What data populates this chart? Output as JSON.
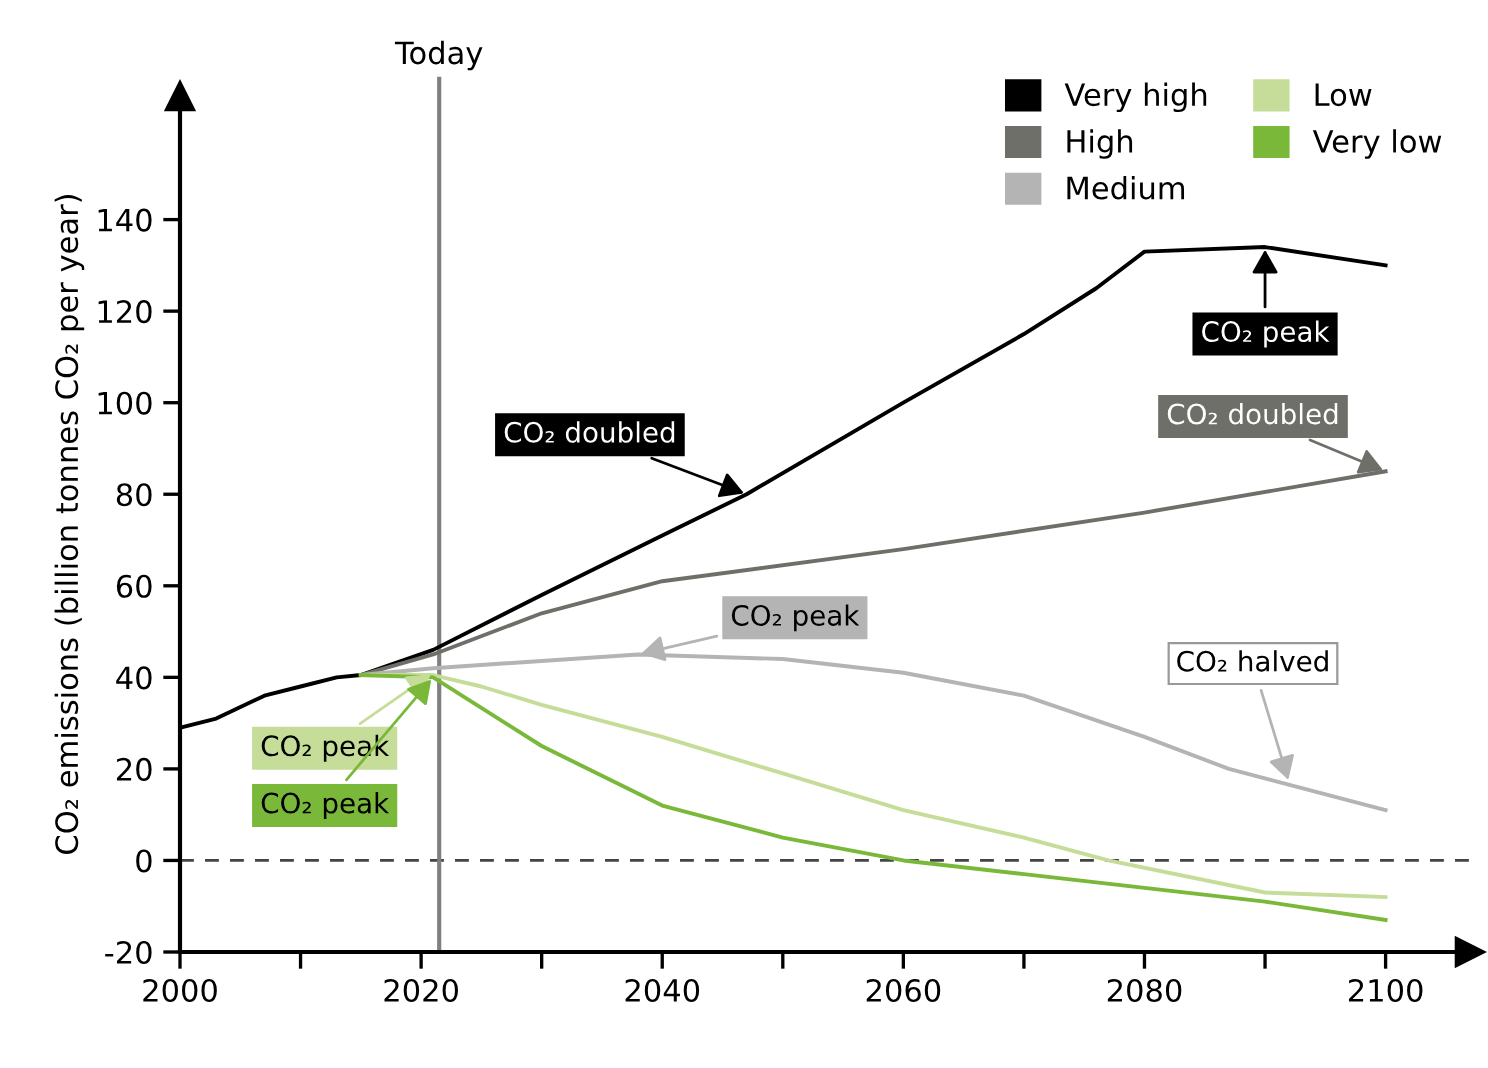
{
  "chart_data": {
    "type": "line",
    "ylabel": "CO₂ emissions (billion tonnes CO₂ per year)",
    "xlim": [
      2000,
      2107
    ],
    "ylim": [
      -20,
      167
    ],
    "xticks": [
      2000,
      {
        "value": 2010,
        "label": null
      },
      2020,
      {
        "value": 2030,
        "label": null
      },
      2040,
      {
        "value": 2050,
        "label": null
      },
      2060,
      {
        "value": 2070,
        "label": null
      },
      2080,
      {
        "value": 2090,
        "label": null
      },
      2100
    ],
    "yticks": [
      -20,
      0,
      20,
      40,
      60,
      80,
      100,
      120,
      140
    ],
    "legend": "top right",
    "grid": false,
    "line_style": "solid",
    "marker": "none",
    "series": [
      {
        "name": "Very high",
        "color": "#000000",
        "x": [
          2000,
          2003,
          2007,
          2010,
          2013,
          2015,
          2021,
          2030,
          2040,
          2047,
          2060,
          2070,
          2076,
          2080,
          2090,
          2100
        ],
        "values": [
          29,
          31,
          36,
          38,
          40,
          40.5,
          46,
          58,
          71,
          80,
          100,
          115,
          125,
          133,
          134,
          130
        ]
      },
      {
        "name": "High",
        "color": "#6f6f6a",
        "x": [
          2015,
          2021,
          2030,
          2040,
          2060,
          2080,
          2100
        ],
        "values": [
          40.5,
          45,
          54,
          61,
          68,
          76,
          85
        ]
      },
      {
        "name": "Medium",
        "color": "#b4b4b4",
        "x": [
          2015,
          2021,
          2038,
          2050,
          2060,
          2070,
          2080,
          2087,
          2100
        ],
        "values": [
          40.5,
          42,
          45,
          44,
          41,
          36,
          27,
          20,
          11
        ]
      },
      {
        "name": "Low",
        "color": "#c5dd98",
        "x": [
          2015,
          2021,
          2025,
          2030,
          2040,
          2050,
          2060,
          2070,
          2077,
          2090,
          2100
        ],
        "values": [
          40.5,
          40.5,
          38,
          34,
          27,
          19,
          11,
          5,
          0,
          -7,
          -8
        ]
      },
      {
        "name": "Very low",
        "color": "#7ab83a",
        "x": [
          2015,
          2021,
          2030,
          2040,
          2050,
          2060,
          2070,
          2080,
          2090,
          2100
        ],
        "values": [
          40.5,
          40,
          25,
          12,
          5,
          0,
          -3,
          -6,
          -9,
          -13
        ]
      }
    ],
    "ref_lines": [
      {
        "axis": "y",
        "value": 0,
        "color": "#444444",
        "line_style": "dashed"
      },
      {
        "axis": "x",
        "value": 2021.5,
        "label": "Today",
        "color": "#808080",
        "line_style": "solid"
      }
    ],
    "annotations": [
      {
        "text": "CO₂ doubled",
        "x": 2047,
        "y": 80
      },
      {
        "text": "CO₂ peak",
        "x": 2090,
        "y": 134
      },
      {
        "text": "CO₂ doubled",
        "x": 2100,
        "y": 85
      },
      {
        "text": "CO₂ peak",
        "x": 2038,
        "y": 45
      },
      {
        "text": "CO₂ halved",
        "x": 2092,
        "y": 17
      },
      {
        "text": "CO₂ peak",
        "x": 2021,
        "y": 41
      },
      {
        "text": "CO₂ peak",
        "x": 2021,
        "y": 40
      }
    ]
  }
}
